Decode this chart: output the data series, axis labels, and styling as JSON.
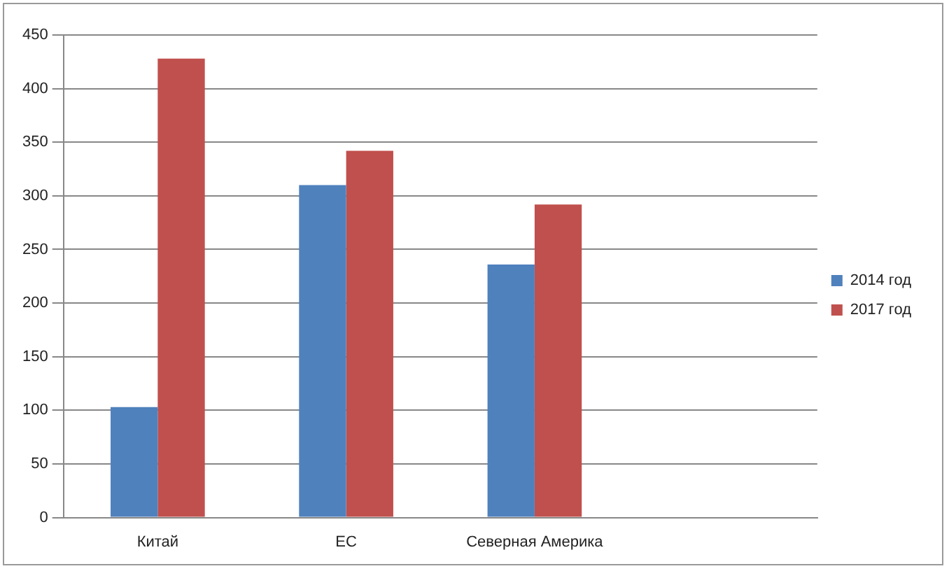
{
  "chart_data": {
    "type": "bar",
    "categories": [
      "Китай",
      "ЕС",
      "Северная Америка",
      null
    ],
    "series": [
      {
        "name": "2014 год",
        "color": "#4f81bd",
        "values": [
          103,
          310,
          236,
          null
        ]
      },
      {
        "name": "2017 год",
        "color": "#c0504d",
        "values": [
          428,
          342,
          292,
          null
        ]
      }
    ],
    "ylim": [
      0,
      450
    ],
    "yticks": [
      0,
      50,
      100,
      150,
      200,
      250,
      300,
      350,
      400,
      450
    ],
    "grid": "y",
    "legend": "right"
  }
}
